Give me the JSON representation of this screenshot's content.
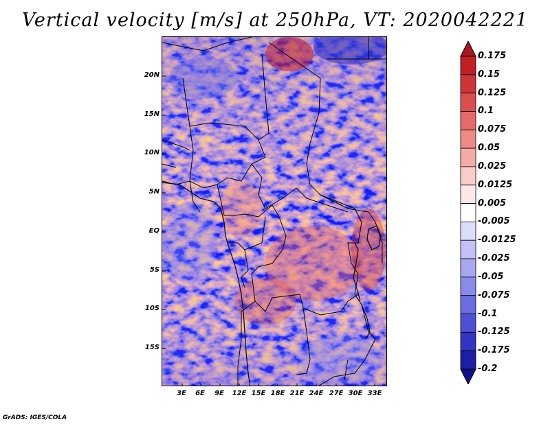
{
  "title": "Vertical velocity [m/s] at 250hPa, VT: 2020042221",
  "lat_labels": [
    "20N",
    "15N",
    "10N",
    "5N",
    "EQ",
    "5S",
    "10S",
    "15S"
  ],
  "lon_labels": [
    "3E",
    "6E",
    "9E",
    "12E",
    "15E",
    "18E",
    "21E",
    "24E",
    "27E",
    "30E",
    "33E"
  ],
  "colorbar": {
    "labels": [
      "0.175",
      "0.15",
      "0.125",
      "0.1",
      "0.075",
      "0.05",
      "0.025",
      "0.0125",
      "0.005",
      "-0.005",
      "-0.0125",
      "-0.025",
      "-0.05",
      "-0.075",
      "-0.1",
      "-0.125",
      "-0.175",
      "-0.2"
    ],
    "colors": [
      "#a8161e",
      "#c21e26",
      "#cf3438",
      "#db4e4e",
      "#e56a68",
      "#ec8a86",
      "#f3aba6",
      "#f8ccc7",
      "#fce8e5",
      "#ffffff",
      "#dcdcfb",
      "#c2c2f6",
      "#a6a6f1",
      "#8a8aeb",
      "#6d6de3",
      "#4f4fd5",
      "#3333c4",
      "#1e1eaa",
      "#10108a"
    ]
  },
  "footer": "GrADS: IGES/COLA"
}
